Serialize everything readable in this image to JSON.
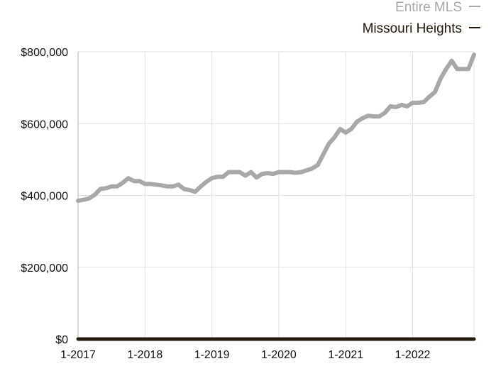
{
  "chart_data": {
    "type": "line",
    "title": "",
    "xlabel": "",
    "ylabel": "",
    "x_start": "2017-01",
    "x_tick_labels": [
      "1-2017",
      "1-2018",
      "1-2019",
      "1-2020",
      "1-2021",
      "1-2022"
    ],
    "x_ticks": [
      "2017-01",
      "2018-01",
      "2019-01",
      "2020-01",
      "2021-01",
      "2022-01"
    ],
    "x_range": [
      "2017-01",
      "2022-12"
    ],
    "y_tick_labels": [
      "$0",
      "$200,000",
      "$400,000",
      "$600,000",
      "$800,000"
    ],
    "y_ticks": [
      0,
      200000,
      400000,
      600000,
      800000
    ],
    "ylim": [
      0,
      800000
    ],
    "grid": true,
    "legend_position": "top-right",
    "series": [
      {
        "name": "Entire MLS",
        "color": "#a8a8a8",
        "x": [
          "2017-01",
          "2017-02",
          "2017-03",
          "2017-04",
          "2017-05",
          "2017-06",
          "2017-07",
          "2017-08",
          "2017-09",
          "2017-10",
          "2017-11",
          "2017-12",
          "2018-01",
          "2018-02",
          "2018-03",
          "2018-04",
          "2018-05",
          "2018-06",
          "2018-07",
          "2018-08",
          "2018-09",
          "2018-10",
          "2018-11",
          "2018-12",
          "2019-01",
          "2019-02",
          "2019-03",
          "2019-04",
          "2019-05",
          "2019-06",
          "2019-07",
          "2019-08",
          "2019-09",
          "2019-10",
          "2019-11",
          "2019-12",
          "2020-01",
          "2020-02",
          "2020-03",
          "2020-04",
          "2020-05",
          "2020-06",
          "2020-07",
          "2020-08",
          "2020-09",
          "2020-10",
          "2020-11",
          "2020-12",
          "2021-01",
          "2021-02",
          "2021-03",
          "2021-04",
          "2021-05",
          "2021-06",
          "2021-07",
          "2021-08",
          "2021-09",
          "2021-10",
          "2021-11",
          "2021-12",
          "2022-01",
          "2022-02",
          "2022-03",
          "2022-04",
          "2022-05",
          "2022-06",
          "2022-07",
          "2022-08",
          "2022-09",
          "2022-10",
          "2022-11",
          "2022-12"
        ],
        "values": [
          385000,
          388000,
          392000,
          402000,
          418000,
          420000,
          425000,
          425000,
          435000,
          448000,
          440000,
          440000,
          432000,
          432000,
          430000,
          428000,
          425000,
          425000,
          430000,
          418000,
          415000,
          410000,
          425000,
          438000,
          448000,
          452000,
          452000,
          465000,
          465000,
          465000,
          455000,
          465000,
          450000,
          460000,
          462000,
          460000,
          465000,
          465000,
          465000,
          463000,
          465000,
          470000,
          475000,
          485000,
          515000,
          545000,
          562000,
          585000,
          575000,
          585000,
          605000,
          615000,
          622000,
          620000,
          620000,
          630000,
          648000,
          646000,
          652000,
          648000,
          658000,
          658000,
          660000,
          675000,
          688000,
          725000,
          752000,
          775000,
          752000,
          752000,
          752000,
          792000
        ]
      },
      {
        "name": "Missouri Heights",
        "color": "#231a0c",
        "x": [
          "2017-01",
          "2022-12"
        ],
        "values": [
          0,
          0
        ]
      }
    ]
  }
}
